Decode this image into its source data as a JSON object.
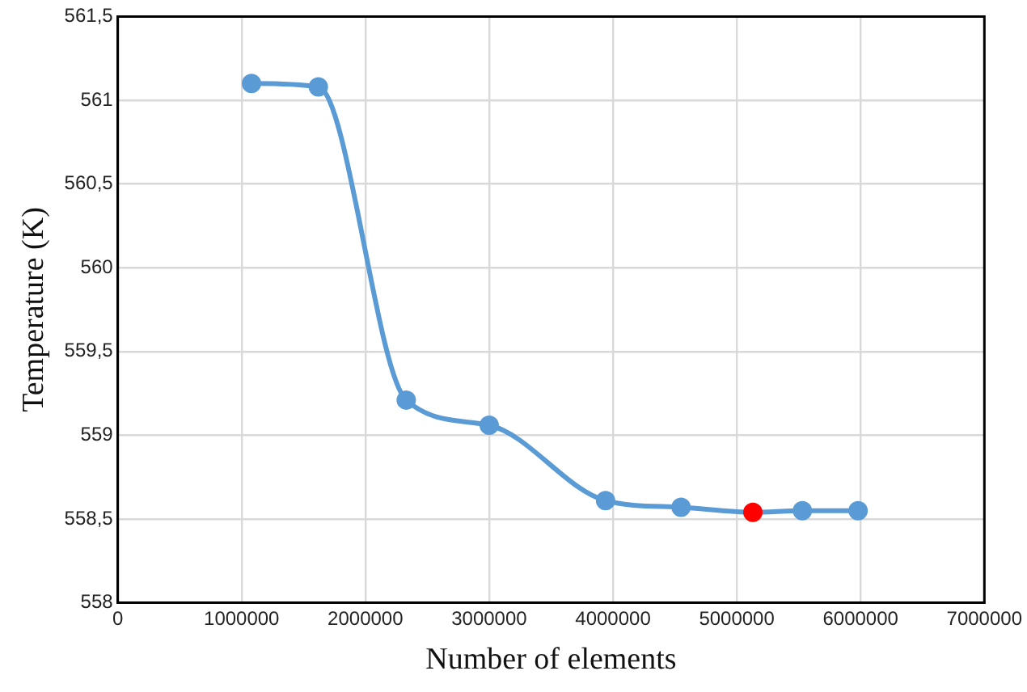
{
  "chart_data": {
    "type": "line",
    "xlabel": "Number of elements",
    "ylabel": "Temperature (K)",
    "series": [
      {
        "color": "#5b9bd5",
        "colors": [
          "#5b9bd5",
          "#5b9bd5",
          "#5b9bd5",
          "#5b9bd5",
          "#5b9bd5",
          "#5b9bd5",
          "#ff0000",
          "#5b9bd5",
          "#5b9bd5"
        ],
        "x": [
          1080000,
          1620000,
          2330000,
          3000000,
          3940000,
          4550000,
          5130000,
          5530000,
          5980000
        ],
        "values": [
          561.1,
          561.08,
          559.21,
          559.06,
          558.61,
          558.57,
          558.54,
          558.55,
          558.55
        ]
      }
    ],
    "xlim": [
      0,
      7000000
    ],
    "xticks": [
      0,
      1000000,
      2000000,
      3000000,
      4000000,
      5000000,
      6000000,
      7000000
    ],
    "ylim": [
      558,
      561.5
    ],
    "yticks": [
      558,
      {
        "value": 558.5,
        "label": "558,5"
      },
      559,
      {
        "value": 559.5,
        "label": "559,5"
      },
      560,
      {
        "value": 560.5,
        "label": "560,5"
      },
      561,
      {
        "value": 561.5,
        "label": "561,5"
      }
    ],
    "grid": true,
    "legend": false,
    "marker": "circle",
    "line_style": "solid"
  }
}
